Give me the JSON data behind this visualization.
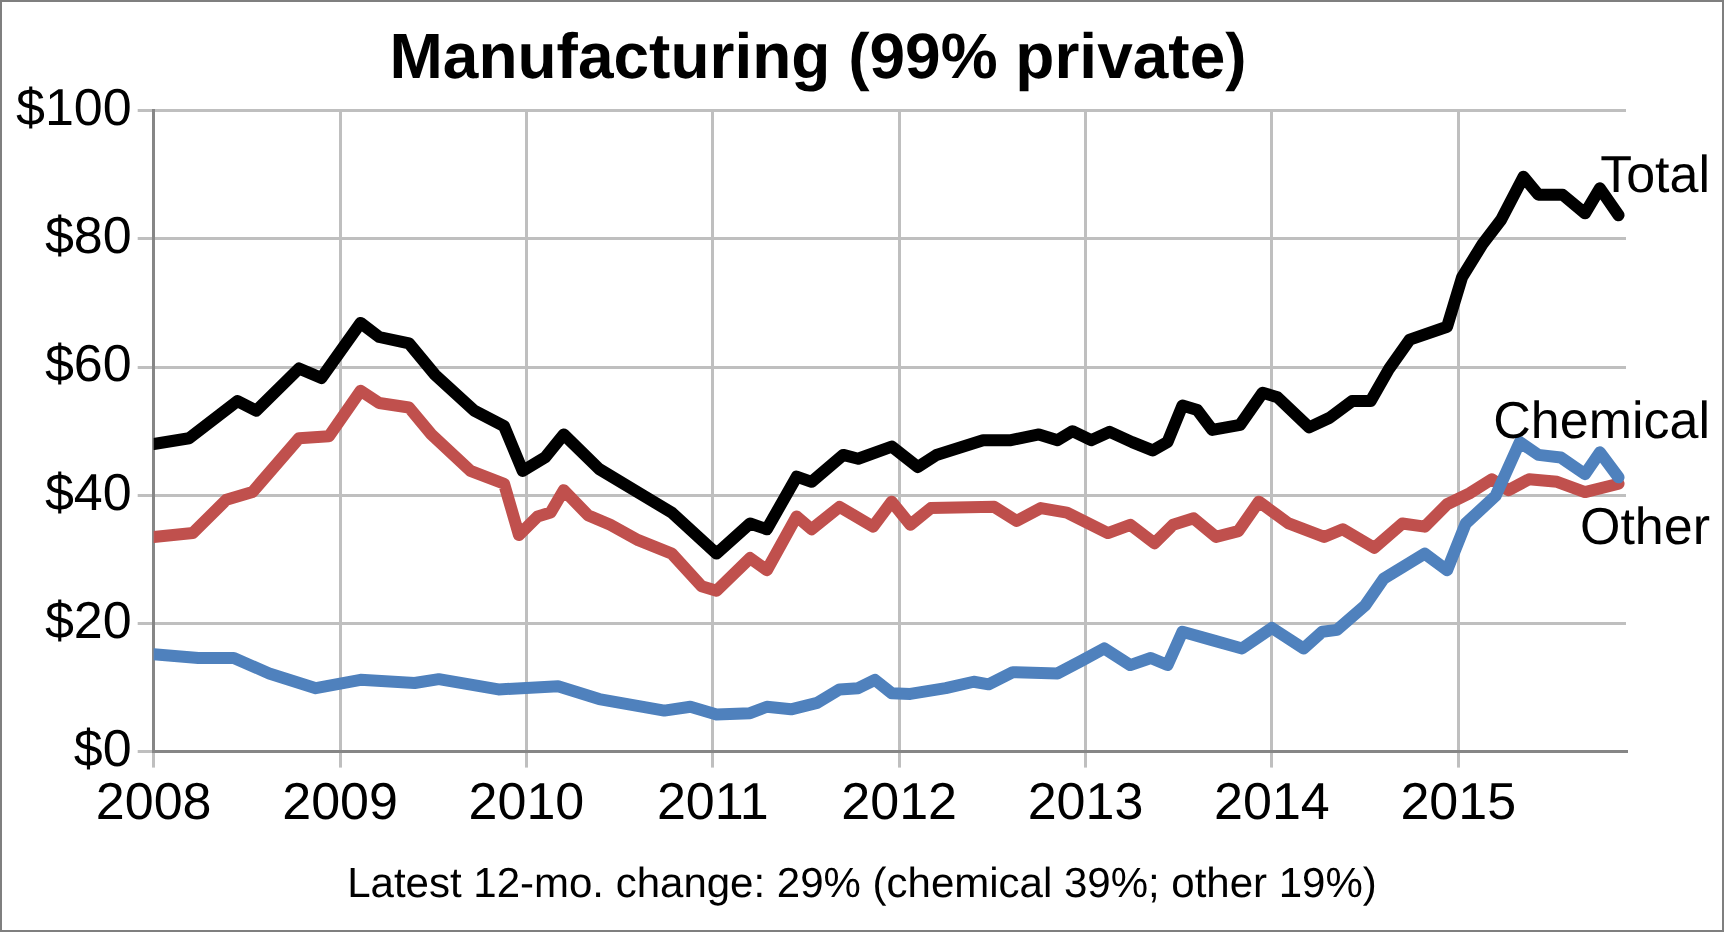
{
  "chart_data": {
    "type": "line",
    "title": "Manufacturing (99% private)",
    "annotations": [
      "Latest 12-mo. change: 29% (chemical 39%; other 19%)"
    ],
    "xlim": [
      2008,
      2015.9
    ],
    "xticks": [
      2008,
      2009,
      2010,
      2011,
      2012,
      2013,
      2014,
      2015
    ],
    "ylim": [
      0,
      100
    ],
    "yticks": [
      {
        "value": 0,
        "label": "$0"
      },
      {
        "value": 20,
        "label": "$20"
      },
      {
        "value": 40,
        "label": "$40"
      },
      {
        "value": 60,
        "label": "$60"
      },
      {
        "value": 80,
        "label": "$80"
      },
      {
        "value": 100,
        "label": "$100"
      }
    ],
    "grid": true,
    "legend": false,
    "marker": "none",
    "line_style": "solid",
    "series": [
      {
        "name": "Total",
        "color": "#000000",
        "x": [
          2008.0,
          2008.19,
          2008.45,
          2008.55,
          2008.78,
          2008.9,
          2009.11,
          2009.21,
          2009.37,
          2009.51,
          2009.72,
          2009.88,
          2009.98,
          2010.1,
          2010.2,
          2010.39,
          2010.63,
          2010.78,
          2011.02,
          2011.2,
          2011.29,
          2011.45,
          2011.53,
          2011.7,
          2011.78,
          2011.96,
          2012.1,
          2012.2,
          2012.45,
          2012.6,
          2012.75,
          2012.85,
          2012.93,
          2013.03,
          2013.13,
          2013.25,
          2013.36,
          2013.44,
          2013.52,
          2013.6,
          2013.68,
          2013.83,
          2013.95,
          2014.03,
          2014.2,
          2014.31,
          2014.43,
          2014.53,
          2014.63,
          2014.74,
          2014.94,
          2015.02,
          2015.13,
          2015.23,
          2015.35,
          2015.43,
          2015.56,
          2015.68,
          2015.76,
          2015.86
        ],
        "values": [
          48,
          48.9,
          54.7,
          53.2,
          59.8,
          58.3,
          66.9,
          64.7,
          63.7,
          58.8,
          53.2,
          50.8,
          43.8,
          45.9,
          49.5,
          44.1,
          39.9,
          37.3,
          30.9,
          35.6,
          34.7,
          42.9,
          42.1,
          46.3,
          45.7,
          47.6,
          44.4,
          46.3,
          48.6,
          48.6,
          49.5,
          48.6,
          50,
          48.6,
          49.9,
          48.3,
          47,
          48.3,
          54,
          53.3,
          50.2,
          51,
          56,
          55.3,
          50.6,
          52.1,
          54.7,
          54.7,
          59.8,
          64.3,
          66.3,
          74,
          79.2,
          83,
          89.7,
          86.9,
          86.9,
          84,
          87.9,
          83.7
        ]
      },
      {
        "name": "Chemical",
        "color": "#4f81bd",
        "x": [
          2008.0,
          2008.24,
          2008.43,
          2008.62,
          2008.87,
          2009.11,
          2009.4,
          2009.53,
          2009.85,
          2010.17,
          2010.39,
          2010.74,
          2010.88,
          2011.02,
          2011.2,
          2011.29,
          2011.42,
          2011.56,
          2011.68,
          2011.78,
          2011.87,
          2011.96,
          2012.06,
          2012.25,
          2012.4,
          2012.48,
          2012.61,
          2012.85,
          2012.98,
          2013.1,
          2013.24,
          2013.35,
          2013.44,
          2013.52,
          2013.68,
          2013.84,
          2014.0,
          2014.17,
          2014.27,
          2014.35,
          2014.5,
          2014.6,
          2014.82,
          2014.94,
          2015.04,
          2015.2,
          2015.33,
          2015.43,
          2015.55,
          2015.68,
          2015.76,
          2015.86
        ],
        "values": [
          15.2,
          14.6,
          14.6,
          12.2,
          9.9,
          11.2,
          10.7,
          11.3,
          9.7,
          10.2,
          8.2,
          6.4,
          7,
          5.8,
          6,
          7,
          6.6,
          7.6,
          9.7,
          9.9,
          11.2,
          9.1,
          9,
          9.9,
          10.9,
          10.5,
          12.4,
          12.2,
          14.2,
          16.1,
          13.5,
          14.6,
          13.5,
          18.7,
          17.4,
          16.1,
          19.3,
          16.1,
          18.7,
          19,
          22.8,
          27,
          30.9,
          28.3,
          35.6,
          39.9,
          48.3,
          46.3,
          45.9,
          43.3,
          46.7,
          42.8
        ]
      },
      {
        "name": "Other",
        "color": "#c0504d",
        "x": [
          2008.0,
          2008.21,
          2008.39,
          2008.53,
          2008.78,
          2008.94,
          2009.11,
          2009.21,
          2009.37,
          2009.49,
          2009.7,
          2009.88,
          2009.96,
          2010.06,
          2010.13,
          2010.2,
          2010.33,
          2010.45,
          2010.6,
          2010.78,
          2010.94,
          2011.02,
          2011.2,
          2011.29,
          2011.45,
          2011.53,
          2011.68,
          2011.86,
          2011.96,
          2012.06,
          2012.17,
          2012.51,
          2012.63,
          2012.76,
          2012.9,
          2013.12,
          2013.24,
          2013.37,
          2013.47,
          2013.58,
          2013.7,
          2013.82,
          2013.93,
          2014.09,
          2014.28,
          2014.38,
          2014.55,
          2014.7,
          2014.82,
          2014.94,
          2015.06,
          2015.18,
          2015.27,
          2015.38,
          2015.53,
          2015.68,
          2015.86
        ],
        "values": [
          33.5,
          34.1,
          39.3,
          40.5,
          48.9,
          49.2,
          56.3,
          54.4,
          53.7,
          49.5,
          43.8,
          41.8,
          33.8,
          36.7,
          37.3,
          40.8,
          36.9,
          35.4,
          33,
          30.9,
          25.8,
          25.1,
          30.2,
          28.3,
          36.7,
          34.7,
          38.2,
          35.1,
          39,
          35.4,
          38,
          38.2,
          36,
          38,
          37.3,
          34.1,
          35.4,
          32.5,
          35.4,
          36.4,
          33.5,
          34.4,
          39,
          35.6,
          33.5,
          34.7,
          31.8,
          35.6,
          35.1,
          38.6,
          40.3,
          42.5,
          40.8,
          42.5,
          42.1,
          40.5,
          41.8
        ]
      }
    ]
  }
}
